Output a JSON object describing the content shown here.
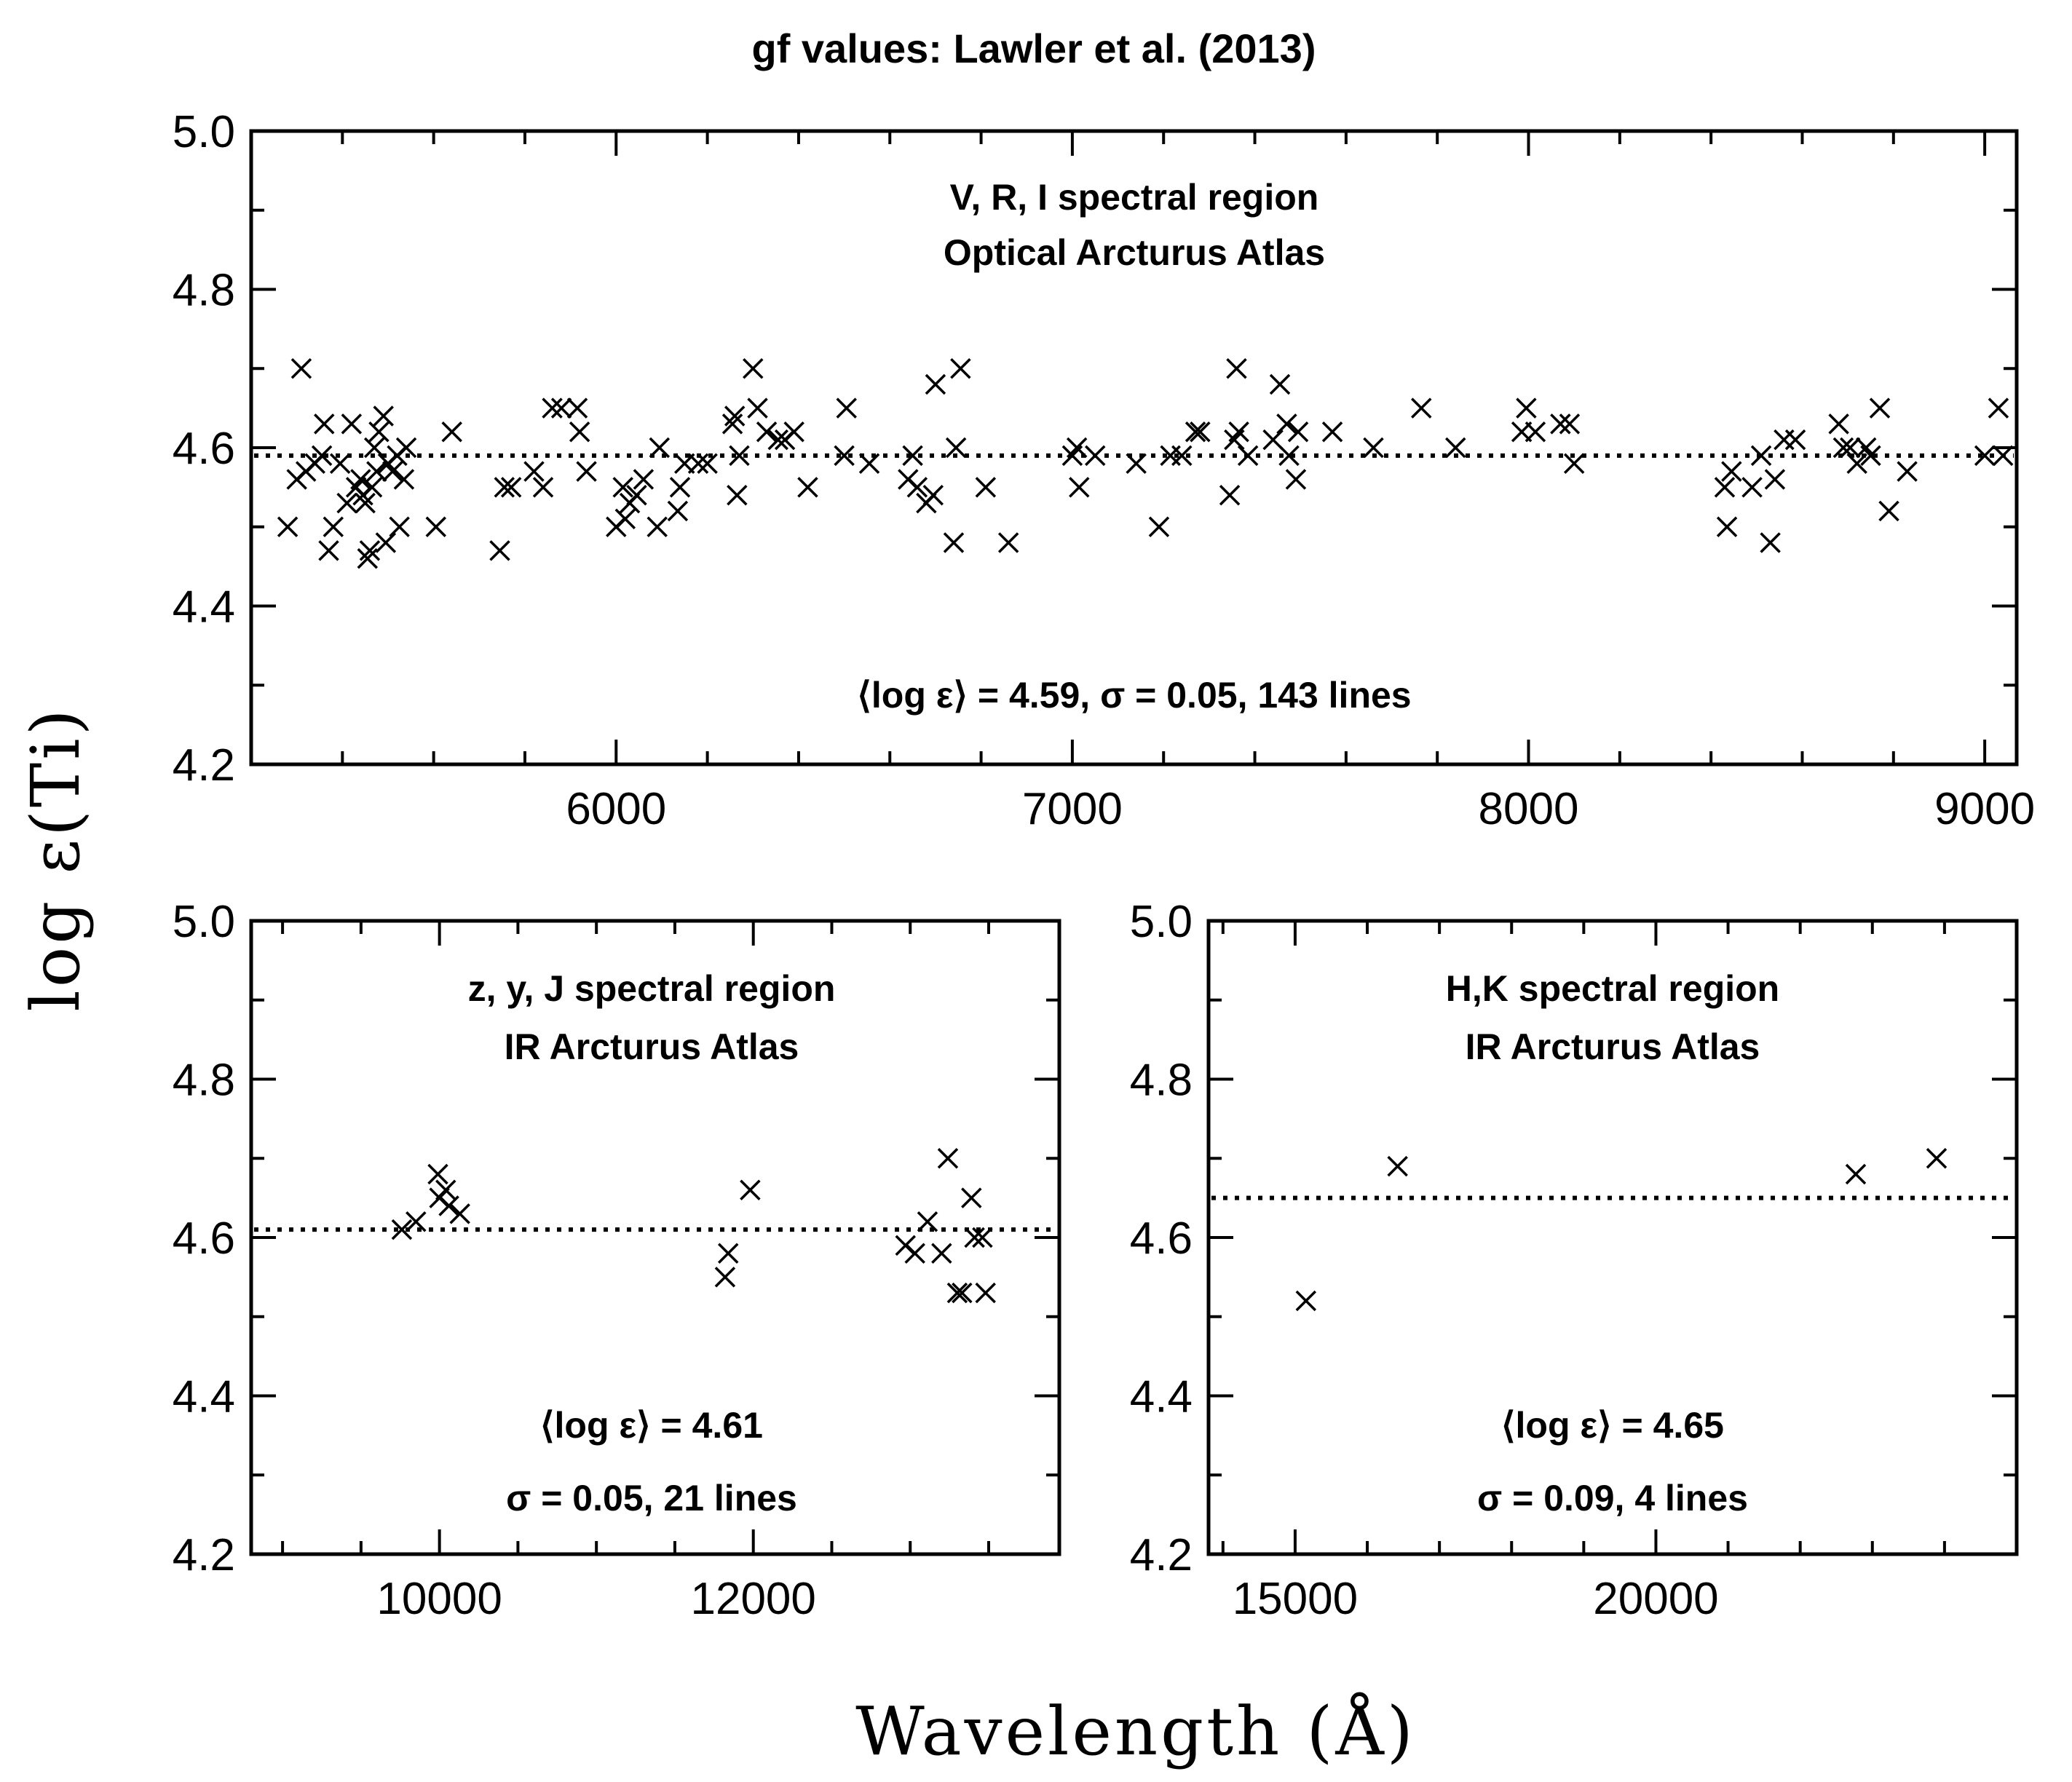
{
  "figure": {
    "title": "gf values:  Lawler et al. (2013)",
    "xlabel": "Wavelength (Å)",
    "ylabel": "log ε(Ti)"
  },
  "chart_data": [
    {
      "type": "scatter",
      "name": "optical",
      "marker": "x",
      "title_lines": [
        "V, R, I spectral region",
        "Optical Arcturus Atlas"
      ],
      "stats_lines": [
        "⟨log ε⟩ = 4.59, σ = 0.05, 143 lines"
      ],
      "mean": 4.59,
      "xlim": [
        5200,
        9070
      ],
      "ylim": [
        4.2,
        5.0
      ],
      "xticks": [
        6000,
        7000,
        8000,
        9000
      ],
      "xminor": 200,
      "yticks": [
        4.2,
        4.4,
        4.6,
        4.8,
        5.0
      ],
      "yminor": 0.1,
      "points": [
        [
          5280,
          4.5
        ],
        [
          5300,
          4.56
        ],
        [
          5310,
          4.7
        ],
        [
          5320,
          4.57
        ],
        [
          5340,
          4.58
        ],
        [
          5355,
          4.59
        ],
        [
          5360,
          4.63
        ],
        [
          5370,
          4.47
        ],
        [
          5380,
          4.5
        ],
        [
          5395,
          4.58
        ],
        [
          5410,
          4.53
        ],
        [
          5420,
          4.63
        ],
        [
          5430,
          4.55
        ],
        [
          5440,
          4.56
        ],
        [
          5445,
          4.54
        ],
        [
          5450,
          4.53
        ],
        [
          5455,
          4.46
        ],
        [
          5460,
          4.47
        ],
        [
          5465,
          4.55
        ],
        [
          5470,
          4.6
        ],
        [
          5475,
          4.57
        ],
        [
          5480,
          4.62
        ],
        [
          5490,
          4.64
        ],
        [
          5495,
          4.48
        ],
        [
          5500,
          4.58
        ],
        [
          5510,
          4.57
        ],
        [
          5520,
          4.59
        ],
        [
          5525,
          4.5
        ],
        [
          5535,
          4.56
        ],
        [
          5540,
          4.6
        ],
        [
          5605,
          4.5
        ],
        [
          5640,
          4.62
        ],
        [
          5745,
          4.47
        ],
        [
          5755,
          4.55
        ],
        [
          5770,
          4.55
        ],
        [
          5820,
          4.57
        ],
        [
          5840,
          4.55
        ],
        [
          5860,
          4.65
        ],
        [
          5880,
          4.65
        ],
        [
          5915,
          4.65
        ],
        [
          5920,
          4.62
        ],
        [
          5935,
          4.57
        ],
        [
          6000,
          4.5
        ],
        [
          6015,
          4.55
        ],
        [
          6020,
          4.51
        ],
        [
          6030,
          4.53
        ],
        [
          6045,
          4.54
        ],
        [
          6060,
          4.56
        ],
        [
          6090,
          4.5
        ],
        [
          6095,
          4.6
        ],
        [
          6135,
          4.52
        ],
        [
          6140,
          4.55
        ],
        [
          6150,
          4.58
        ],
        [
          6180,
          4.58
        ],
        [
          6200,
          4.58
        ],
        [
          6255,
          4.63
        ],
        [
          6260,
          4.64
        ],
        [
          6265,
          4.54
        ],
        [
          6270,
          4.59
        ],
        [
          6300,
          4.7
        ],
        [
          6310,
          4.65
        ],
        [
          6330,
          4.62
        ],
        [
          6355,
          4.61
        ],
        [
          6370,
          4.61
        ],
        [
          6390,
          4.62
        ],
        [
          6420,
          4.55
        ],
        [
          6500,
          4.59
        ],
        [
          6505,
          4.65
        ],
        [
          6555,
          4.58
        ],
        [
          6640,
          4.56
        ],
        [
          6650,
          4.59
        ],
        [
          6660,
          4.55
        ],
        [
          6680,
          4.53
        ],
        [
          6695,
          4.54
        ],
        [
          6700,
          4.68
        ],
        [
          6740,
          4.48
        ],
        [
          6745,
          4.6
        ],
        [
          6755,
          4.7
        ],
        [
          6810,
          4.55
        ],
        [
          6860,
          4.48
        ],
        [
          7000,
          4.59
        ],
        [
          7010,
          4.6
        ],
        [
          7015,
          4.55
        ],
        [
          7050,
          4.59
        ],
        [
          7140,
          4.58
        ],
        [
          7190,
          4.5
        ],
        [
          7215,
          4.59
        ],
        [
          7240,
          4.59
        ],
        [
          7270,
          4.62
        ],
        [
          7280,
          4.62
        ],
        [
          7345,
          4.54
        ],
        [
          7355,
          4.61
        ],
        [
          7360,
          4.7
        ],
        [
          7365,
          4.62
        ],
        [
          7385,
          4.59
        ],
        [
          7440,
          4.61
        ],
        [
          7455,
          4.68
        ],
        [
          7470,
          4.63
        ],
        [
          7475,
          4.59
        ],
        [
          7490,
          4.56
        ],
        [
          7495,
          4.62
        ],
        [
          7570,
          4.62
        ],
        [
          7660,
          4.6
        ],
        [
          7765,
          4.65
        ],
        [
          7840,
          4.6
        ],
        [
          7985,
          4.62
        ],
        [
          7995,
          4.65
        ],
        [
          8015,
          4.62
        ],
        [
          8070,
          4.63
        ],
        [
          8090,
          4.63
        ],
        [
          8100,
          4.58
        ],
        [
          8430,
          4.55
        ],
        [
          8435,
          4.5
        ],
        [
          8445,
          4.57
        ],
        [
          8490,
          4.55
        ],
        [
          8510,
          4.59
        ],
        [
          8530,
          4.48
        ],
        [
          8540,
          4.56
        ],
        [
          8560,
          4.61
        ],
        [
          8585,
          4.61
        ],
        [
          8680,
          4.63
        ],
        [
          8690,
          4.6
        ],
        [
          8705,
          4.6
        ],
        [
          8720,
          4.58
        ],
        [
          8740,
          4.6
        ],
        [
          8750,
          4.59
        ],
        [
          8770,
          4.65
        ],
        [
          8790,
          4.52
        ],
        [
          8830,
          4.57
        ],
        [
          9000,
          4.59
        ],
        [
          9030,
          4.65
        ],
        [
          9040,
          4.59
        ]
      ]
    },
    {
      "type": "scatter",
      "name": "ir-zyj",
      "marker": "x",
      "title_lines": [
        "z, y, J spectral region",
        "IR Arcturus Atlas"
      ],
      "stats_lines": [
        "⟨log ε⟩ = 4.61",
        "σ = 0.05, 21 lines"
      ],
      "mean": 4.61,
      "xlim": [
        8800,
        13950
      ],
      "ylim": [
        4.2,
        5.0
      ],
      "xticks": [
        10000,
        12000
      ],
      "xminor": 500,
      "yticks": [
        4.2,
        4.4,
        4.6,
        4.8,
        5.0
      ],
      "yminor": 0.1,
      "points": [
        [
          9760,
          4.61
        ],
        [
          9850,
          4.62
        ],
        [
          9990,
          4.68
        ],
        [
          10000,
          4.65
        ],
        [
          10040,
          4.66
        ],
        [
          10060,
          4.64
        ],
        [
          10130,
          4.63
        ],
        [
          11820,
          4.55
        ],
        [
          11840,
          4.58
        ],
        [
          11980,
          4.66
        ],
        [
          12970,
          4.59
        ],
        [
          13030,
          4.58
        ],
        [
          13110,
          4.62
        ],
        [
          13200,
          4.58
        ],
        [
          13240,
          4.7
        ],
        [
          13300,
          4.53
        ],
        [
          13330,
          4.53
        ],
        [
          13390,
          4.65
        ],
        [
          13410,
          4.6
        ],
        [
          13480,
          4.53
        ],
        [
          13460,
          4.6
        ]
      ]
    },
    {
      "type": "scatter",
      "name": "ir-hk",
      "marker": "x",
      "title_lines": [
        "H,K spectral region",
        "IR Arcturus Atlas"
      ],
      "stats_lines": [
        "⟨log ε⟩ = 4.65",
        "σ = 0.09, 4 lines"
      ],
      "mean": 4.65,
      "xlim": [
        13800,
        25000
      ],
      "ylim": [
        4.2,
        5.0
      ],
      "xticks": [
        15000,
        20000
      ],
      "xminor": 1000,
      "yticks": [
        4.2,
        4.4,
        4.6,
        4.8,
        5.0
      ],
      "yminor": 0.1,
      "points": [
        [
          15150,
          4.52
        ],
        [
          16420,
          4.69
        ],
        [
          22770,
          4.68
        ],
        [
          23890,
          4.7
        ]
      ]
    }
  ]
}
